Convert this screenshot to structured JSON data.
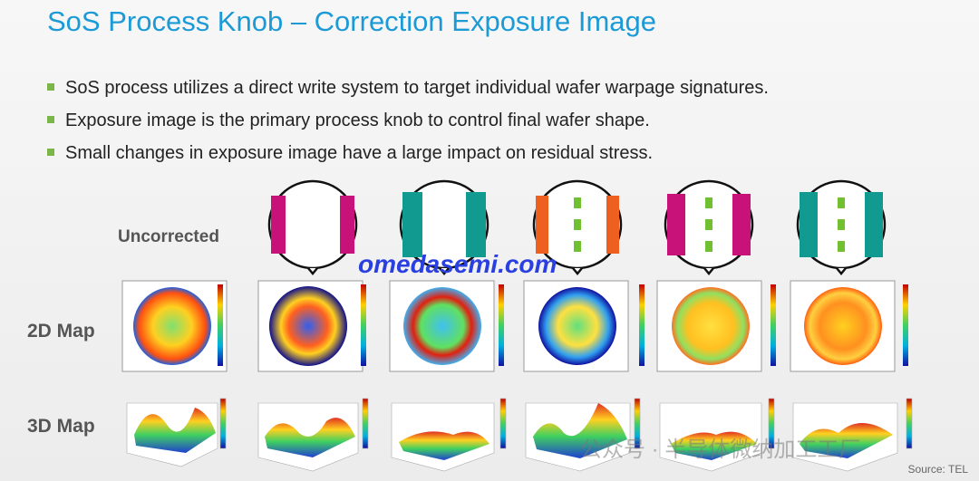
{
  "header": {
    "title": "SoS Process Knob – Correction Exposure Image"
  },
  "bullets": [
    "SoS process utilizes a direct write system to target individual wafer warpage signatures.",
    "Exposure image is the primary process knob to control final wafer shape.",
    "Small changes in exposure image have a large impact on residual stress."
  ],
  "row_labels": {
    "uncorrected": "Uncorrected",
    "map2d": "2D Map",
    "map3d": "3D Map"
  },
  "watermark": "omedasemi.com",
  "wechat_watermark": "公众号 · 半导体微纳加工工厂",
  "source": "Source: TEL"
}
